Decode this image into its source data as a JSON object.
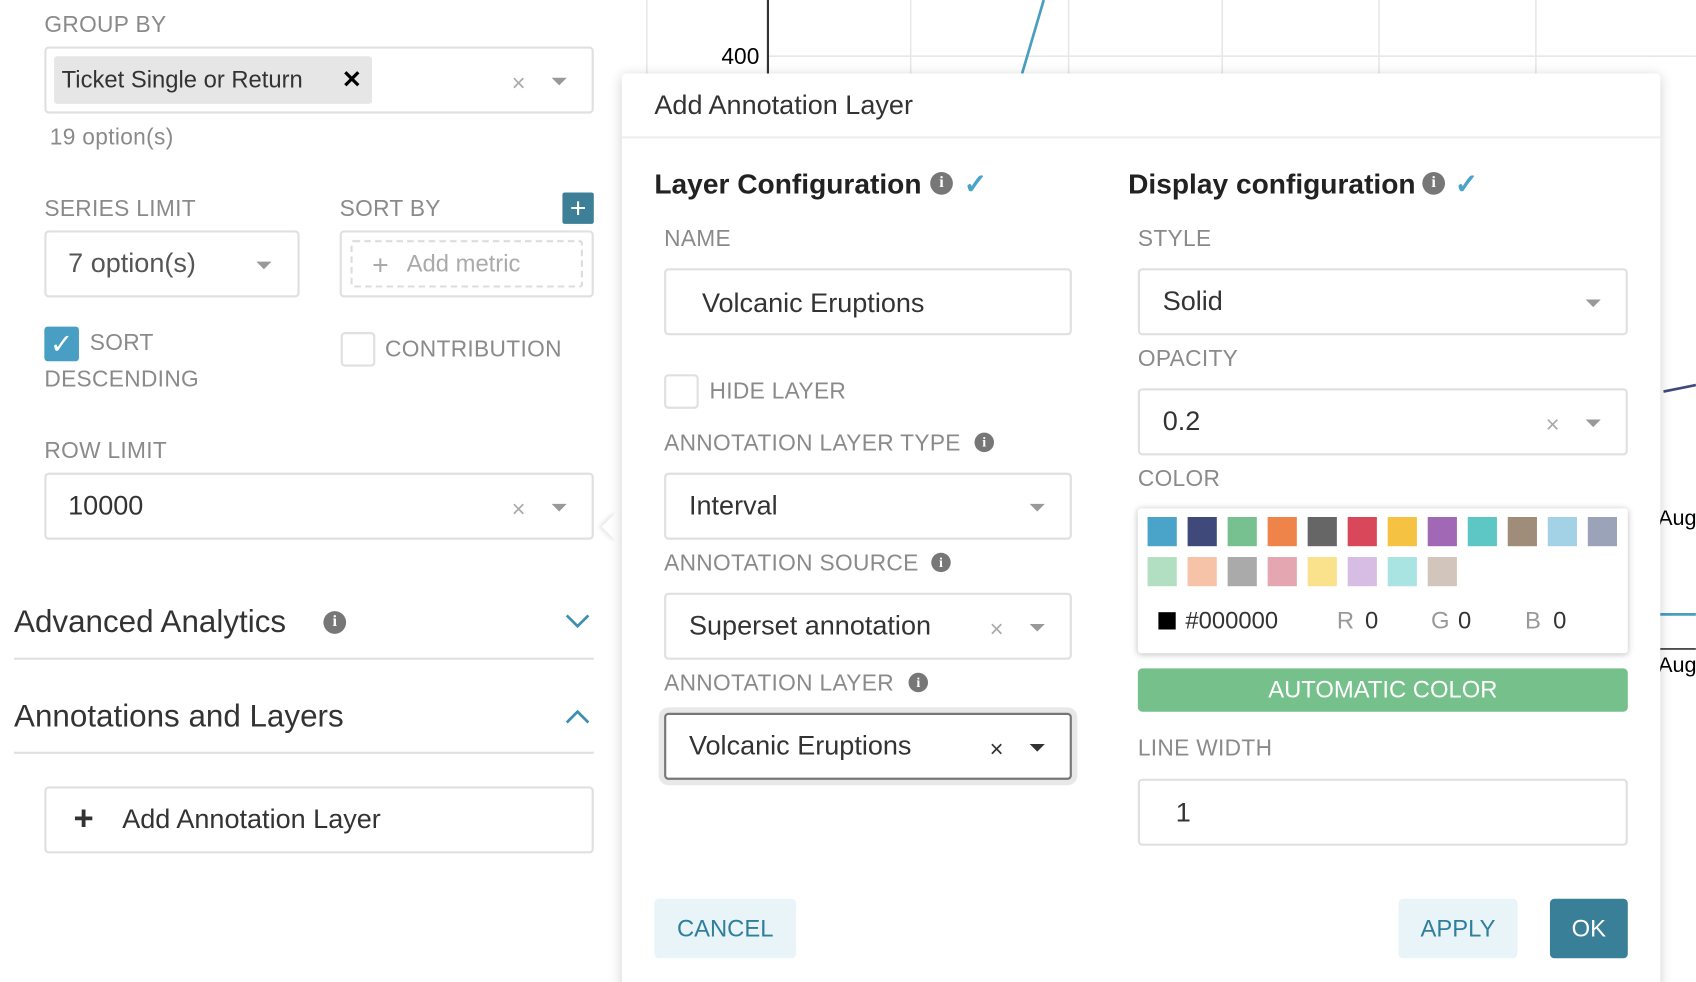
{
  "left_panel": {
    "group_by_label": "GROUP BY",
    "group_by_tag": "Ticket Single or Return",
    "group_by_hint": "19 option(s)",
    "series_limit_label": "SERIES LIMIT",
    "series_limit_value": "7 option(s)",
    "sort_by_label": "SORT BY",
    "sort_by_placeholder": "Add metric",
    "sort_descending_label": "SORT",
    "sort_descending_label_2": "DESCENDING",
    "contribution_label": "CONTRIBUTION",
    "row_limit_label": "ROW LIMIT",
    "row_limit_value": "10000",
    "advanced_analytics": "Advanced Analytics",
    "annotations_and_layers": "Annotations and Layers",
    "add_annotation_layer": "Add Annotation Layer"
  },
  "chart": {
    "y_tick": "400",
    "x_labels": [
      "Aug",
      "Aug"
    ]
  },
  "modal": {
    "title": "Add Annotation Layer",
    "layer_configuration": {
      "title": "Layer Configuration",
      "name_label": "NAME",
      "name_value": "Volcanic Eruptions",
      "hide_layer_label": "HIDE LAYER",
      "type_label": "ANNOTATION LAYER TYPE",
      "type_value": "Interval",
      "source_label": "ANNOTATION SOURCE",
      "source_value": "Superset annotation",
      "layer_label": "ANNOTATION LAYER",
      "layer_value": "Volcanic Eruptions"
    },
    "display_configuration": {
      "title": "Display configuration",
      "style_label": "STYLE",
      "style_value": "Solid",
      "opacity_label": "OPACITY",
      "opacity_value": "0.2",
      "color_label": "COLOR",
      "swatches": [
        "#4aa3c8",
        "#404a7a",
        "#77c08f",
        "#ee8449",
        "#666666",
        "#d9475a",
        "#f5c242",
        "#a169b5",
        "#5cc7c5",
        "#a08d79",
        "#a3d1e6",
        "#9ba3b8",
        "#b2dfc2",
        "#f6c3a9",
        "#aaaaaa",
        "#e4a6b0",
        "#f9e28b",
        "#d7bde3",
        "#a9e3e2",
        "#d2c5bb"
      ],
      "hex_value": "#000000",
      "r_label": "R",
      "r_value": "0",
      "g_label": "G",
      "g_value": "0",
      "b_label": "B",
      "b_value": "0",
      "automatic_color": "AUTOMATIC COLOR",
      "line_width_label": "LINE WIDTH",
      "line_width_value": "1"
    },
    "buttons": {
      "cancel": "CANCEL",
      "apply": "APPLY",
      "ok": "OK"
    }
  }
}
